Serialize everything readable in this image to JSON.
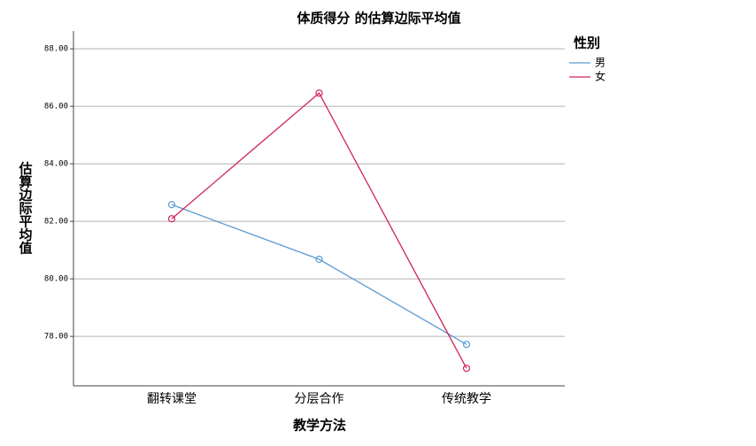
{
  "chart_data": {
    "type": "line",
    "title": "体质得分  的估算边际平均值",
    "x_label": "教学方法",
    "y_label": "估算边际平均值",
    "legend_title": "性别",
    "categories": [
      "翻转课堂",
      "分层合作",
      "传统教学"
    ],
    "series": [
      {
        "name": "男",
        "color": "#5b9bd5",
        "values": [
          82.58,
          80.68,
          77.72
        ]
      },
      {
        "name": "女",
        "color": "#d0245a",
        "values": [
          82.09,
          86.46,
          76.89
        ]
      }
    ],
    "ylim": [
      76.28,
      88.62
    ],
    "yticks": [
      {
        "value": 78,
        "label": "78.00"
      },
      {
        "value": 80,
        "label": "80.00"
      },
      {
        "value": 82,
        "label": "82.00"
      },
      {
        "value": 84,
        "label": "84.00"
      },
      {
        "value": 86,
        "label": "86.00"
      },
      {
        "value": 88,
        "label": "88.00"
      }
    ],
    "grid": true
  }
}
